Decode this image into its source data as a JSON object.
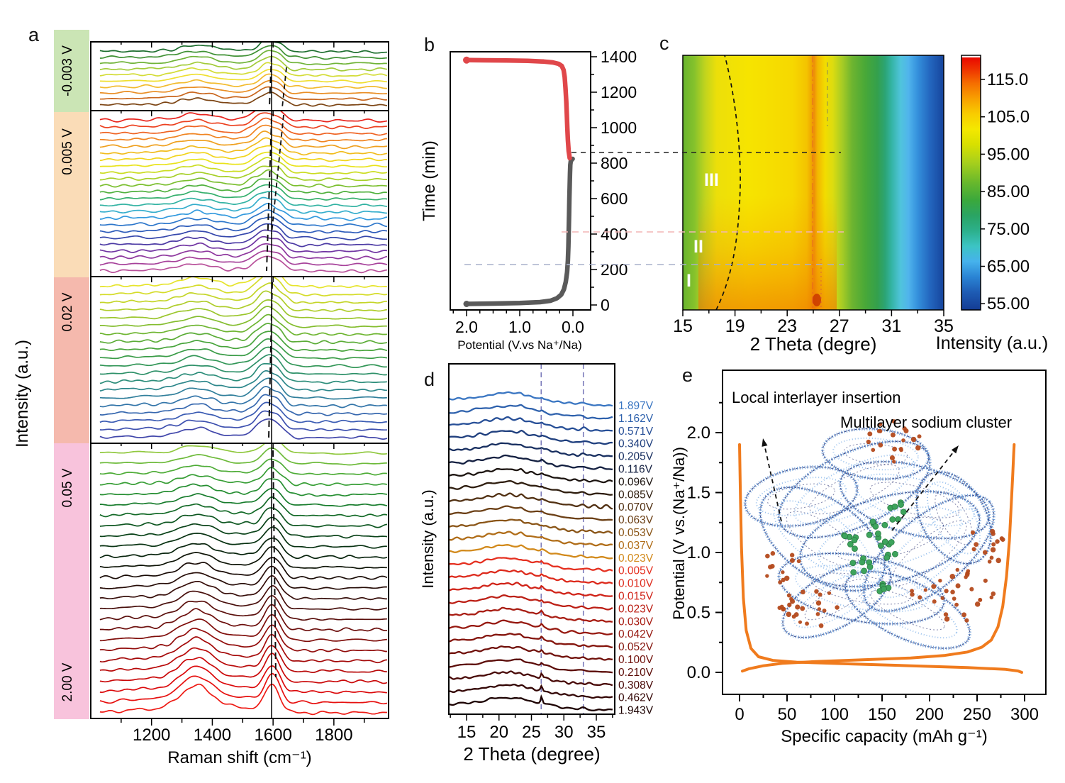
{
  "panel_letters": {
    "a": "a",
    "b": "b",
    "c": "c",
    "d": "d",
    "e": "e"
  },
  "chart_data": [
    {
      "id": "a",
      "type": "line",
      "xlabel": "Raman shift (cm⁻¹)",
      "ylabel": "Intensity (a.u.)",
      "x_ticks": [
        1200,
        1400,
        1600,
        1800
      ],
      "x_range": [
        1000,
        1980
      ],
      "guide_solid_x": 1595,
      "peaks": {
        "d_band_cm": 1348,
        "g_band_cm": 1585,
        "d_prime_cm": 1622
      },
      "voltage_bands": [
        {
          "label": "-0.003 V",
          "band_color": "#cbe5b5",
          "n_curves": 10,
          "g_center": 1585,
          "color_stops": [
            "#1d6e2f",
            "#3f9134",
            "#6fb338",
            "#a3cb3a",
            "#d3dc36",
            "#efdf30",
            "#f2bb2e",
            "#e98e25",
            "#c9661d",
            "#7c4413"
          ]
        },
        {
          "label": "0.005 V",
          "band_color": "#fadcb7",
          "n_curves": 24,
          "g_center": 1578,
          "color_stops": [
            "#e8231c",
            "#ee4a20",
            "#f07c22",
            "#efa21f",
            "#f2c81c",
            "#f0e41a",
            "#c8dc22",
            "#94c82a",
            "#55b236",
            "#2fae74",
            "#36b6c2",
            "#349ee0",
            "#2c6fc6",
            "#2c4cb0",
            "#4a3aa4",
            "#7a32a2",
            "#a03c9a",
            "#b8509a"
          ]
        },
        {
          "label": "0.02 V",
          "band_color": "#f5b9ad",
          "n_curves": 20,
          "g_center": 1582,
          "color_stops": [
            "#e6e42c",
            "#c2d428",
            "#96c42c",
            "#66b232",
            "#3fa03e",
            "#2d9260",
            "#2c8a86",
            "#3278a8",
            "#3a5cb4",
            "#4046aa"
          ]
        },
        {
          "label": "0.05 V",
          "label_end": "2.00 V",
          "band_color": "#f8c3dc",
          "n_curves": 26,
          "g_center": 1596,
          "color_stops": [
            "#90c83e",
            "#56b038",
            "#2f9a34",
            "#177c2c",
            "#0e5c22",
            "#083c16",
            "#07230c",
            "#140b06",
            "#2c0d08",
            "#480f0c",
            "#660f0c",
            "#850c0a",
            "#a40909",
            "#c50708",
            "#e00a0c",
            "#ee1a14"
          ]
        }
      ]
    },
    {
      "id": "b",
      "type": "line",
      "xlabel": "Potential (V.vs Na⁺/Na)",
      "ylabel": "Time  (min)",
      "x_tick_labels": [
        "2.0",
        "1.0",
        "0.0"
      ],
      "x_tick_values": [
        2.0,
        1.0,
        0.0
      ],
      "y_ticks": [
        0,
        200,
        400,
        600,
        800,
        1000,
        1200,
        1400
      ],
      "series": [
        {
          "name": "discharge",
          "color": "#5a5a5a",
          "points": [
            [
              2.0,
              6
            ],
            [
              1.5,
              8
            ],
            [
              1.0,
              11
            ],
            [
              0.62,
              16
            ],
            [
              0.42,
              24
            ],
            [
              0.3,
              38
            ],
            [
              0.22,
              58
            ],
            [
              0.17,
              88
            ],
            [
              0.135,
              130
            ],
            [
              0.11,
              185
            ],
            [
              0.095,
              250
            ],
            [
              0.085,
              330
            ],
            [
              0.078,
              420
            ],
            [
              0.072,
              510
            ],
            [
              0.066,
              600
            ],
            [
              0.06,
              680
            ],
            [
              0.055,
              745
            ],
            [
              0.05,
              790
            ],
            [
              0.04,
              812
            ],
            [
              0.02,
              820
            ],
            [
              0.005,
              824
            ]
          ]
        },
        {
          "name": "charge",
          "color": "#e0474a",
          "points": [
            [
              0.06,
              828
            ],
            [
              0.08,
              868
            ],
            [
              0.095,
              930
            ],
            [
              0.105,
              1000
            ],
            [
              0.115,
              1075
            ],
            [
              0.125,
              1150
            ],
            [
              0.14,
              1225
            ],
            [
              0.155,
              1285
            ],
            [
              0.175,
              1325
            ],
            [
              0.21,
              1348
            ],
            [
              0.27,
              1360
            ],
            [
              0.38,
              1368
            ],
            [
              0.55,
              1373
            ],
            [
              0.85,
              1377
            ],
            [
              1.25,
              1379
            ],
            [
              1.65,
              1380
            ],
            [
              1.93,
              1381
            ],
            [
              2.0,
              1381
            ]
          ]
        }
      ],
      "connector_lines": [
        {
          "time_min": 858,
          "color": "#222222"
        },
        {
          "time_min": 412,
          "color": "#f2b6b6"
        },
        {
          "time_min": 228,
          "color": "#a8b0cc"
        }
      ]
    },
    {
      "id": "c",
      "type": "heatmap",
      "xlabel": "2 Theta (degre)",
      "x_ticks": [
        15,
        19,
        23,
        27,
        31,
        35
      ],
      "x_range": [
        15,
        35
      ],
      "region_labels": [
        "III",
        "II",
        "I"
      ],
      "colorbar": {
        "label": "Intensity (a.u.)",
        "tick_labels": [
          "115.0",
          "105.0",
          "95.00",
          "85.00",
          "75.00",
          "65.00",
          "55.00"
        ],
        "stops": [
          [
            0,
            "#e80000"
          ],
          [
            0.05,
            "#ee2e00"
          ],
          [
            0.11,
            "#f56e00"
          ],
          [
            0.17,
            "#f8a000"
          ],
          [
            0.23,
            "#f8cc00"
          ],
          [
            0.29,
            "#f4e800"
          ],
          [
            0.35,
            "#d8e000"
          ],
          [
            0.42,
            "#a8d01c"
          ],
          [
            0.5,
            "#68b82c"
          ],
          [
            0.57,
            "#3aa83c"
          ],
          [
            0.63,
            "#2aa464"
          ],
          [
            0.69,
            "#2cb08c"
          ],
          [
            0.75,
            "#3cc4c4"
          ],
          [
            0.81,
            "#46b2ec"
          ],
          [
            0.87,
            "#2a84d4"
          ],
          [
            0.93,
            "#1e5cb4"
          ],
          [
            1,
            "#143c94"
          ]
        ]
      },
      "heat_stops": [
        [
          0,
          "#68b42e"
        ],
        [
          0.045,
          "#86c22c"
        ],
        [
          0.085,
          "#c0d41e"
        ],
        [
          0.13,
          "#ecdf0a"
        ],
        [
          0.25,
          "#f6e400"
        ],
        [
          0.42,
          "#f6d800"
        ],
        [
          0.475,
          "#f4c400"
        ],
        [
          0.492,
          "#f0a800"
        ],
        [
          0.503,
          "#ee8e08"
        ],
        [
          0.515,
          "#f2b400"
        ],
        [
          0.545,
          "#f2dc00"
        ],
        [
          0.575,
          "#dcdc10"
        ],
        [
          0.61,
          "#a8cc24"
        ],
        [
          0.65,
          "#6cb430"
        ],
        [
          0.7,
          "#48a838"
        ],
        [
          0.745,
          "#34a04c"
        ],
        [
          0.775,
          "#2ca474"
        ],
        [
          0.8,
          "#34b4a4"
        ],
        [
          0.835,
          "#50c4dc"
        ],
        [
          0.865,
          "#50b4ec"
        ],
        [
          0.9,
          "#3490dc"
        ],
        [
          0.945,
          "#2468c0"
        ],
        [
          1,
          "#16449c"
        ]
      ]
    },
    {
      "id": "d",
      "type": "line-stack",
      "xlabel": "2 Theta (degree)",
      "ylabel": "Intensity (a.u.)",
      "x_ticks": [
        15,
        20,
        25,
        30,
        35
      ],
      "x_range": [
        12.3,
        37.5
      ],
      "dashed_guides_2theta": [
        26.5,
        33
      ],
      "series": [
        {
          "label": "1.897V",
          "color": "#3a76c2"
        },
        {
          "label": "1.162V",
          "color": "#2f62ad"
        },
        {
          "label": "0.571V",
          "color": "#274f97"
        },
        {
          "label": "0.340V",
          "color": "#1f3f7e"
        },
        {
          "label": "0.205V",
          "color": "#182f60"
        },
        {
          "label": "0.116V",
          "color": "#131f40"
        },
        {
          "label": "0.096V",
          "color": "#1c1410"
        },
        {
          "label": "0.085V",
          "color": "#2e1d0e"
        },
        {
          "label": "0.070V",
          "color": "#513012"
        },
        {
          "label": "0.063V",
          "color": "#6b3f15"
        },
        {
          "label": "0.053V",
          "color": "#8a5517"
        },
        {
          "label": "0.037V",
          "color": "#b06d18"
        },
        {
          "label": "0.023V",
          "color": "#d28a1c"
        },
        {
          "label": "0.005V",
          "color": "#e53020"
        },
        {
          "label": "0.010V",
          "color": "#dd2a1c"
        },
        {
          "label": "0.015V",
          "color": "#d02318"
        },
        {
          "label": "0.023V",
          "color": "#bc1f15"
        },
        {
          "label": "0.030V",
          "color": "#a81c12"
        },
        {
          "label": "0.042V",
          "color": "#96180f"
        },
        {
          "label": "0.052V",
          "color": "#84140c"
        },
        {
          "label": "0.100V",
          "color": "#70100a"
        },
        {
          "label": "0.210V",
          "color": "#5c0c08"
        },
        {
          "label": "0.308V",
          "color": "#480806"
        },
        {
          "label": "0.462V",
          "color": "#330504"
        },
        {
          "label": "1.943V",
          "color": "#1d0202"
        }
      ]
    },
    {
      "id": "e",
      "type": "line",
      "xlabel": "Specific capacity  (mAh g⁻¹)",
      "ylabel": "Potential (V vs.(Na⁺/Na))",
      "x_ticks": [
        0,
        50,
        100,
        150,
        200,
        250,
        300
      ],
      "y_tick_labels": [
        "0.0",
        "0.5",
        "1.0",
        "1.5",
        "2.0"
      ],
      "series": [
        {
          "name": "discharge",
          "color": "#f07b1d",
          "points": [
            [
              0,
              1.9
            ],
            [
              1,
              1.45
            ],
            [
              2,
              1.05
            ],
            [
              4,
              0.62
            ],
            [
              7,
              0.35
            ],
            [
              12,
              0.2
            ],
            [
              20,
              0.13
            ],
            [
              35,
              0.1
            ],
            [
              60,
              0.085
            ],
            [
              120,
              0.07
            ],
            [
              180,
              0.055
            ],
            [
              240,
              0.04
            ],
            [
              280,
              0.025
            ],
            [
              293,
              0.012
            ],
            [
              297,
              0.0
            ]
          ]
        },
        {
          "name": "charge",
          "color": "#f07b1d",
          "points": [
            [
              3,
              0.01
            ],
            [
              10,
              0.03
            ],
            [
              25,
              0.055
            ],
            [
              45,
              0.075
            ],
            [
              80,
              0.09
            ],
            [
              130,
              0.105
            ],
            [
              180,
              0.12
            ],
            [
              215,
              0.14
            ],
            [
              240,
              0.17
            ],
            [
              255,
              0.21
            ],
            [
              265,
              0.27
            ],
            [
              272,
              0.38
            ],
            [
              277,
              0.55
            ],
            [
              281,
              0.8
            ],
            [
              284,
              1.1
            ],
            [
              286,
              1.4
            ],
            [
              287.5,
              1.65
            ],
            [
              288.5,
              1.82
            ],
            [
              289,
              1.9
            ]
          ]
        }
      ],
      "annotations": [
        {
          "text": "Local interlayer insertion"
        },
        {
          "text": "Multilayer sodium cluster"
        }
      ],
      "illustration": {
        "mesh_color": "#5e97d9",
        "mesh_dark": "#2b3272",
        "na_ion_color": "#b44a1c",
        "cluster_color": "#3da45c"
      }
    }
  ]
}
